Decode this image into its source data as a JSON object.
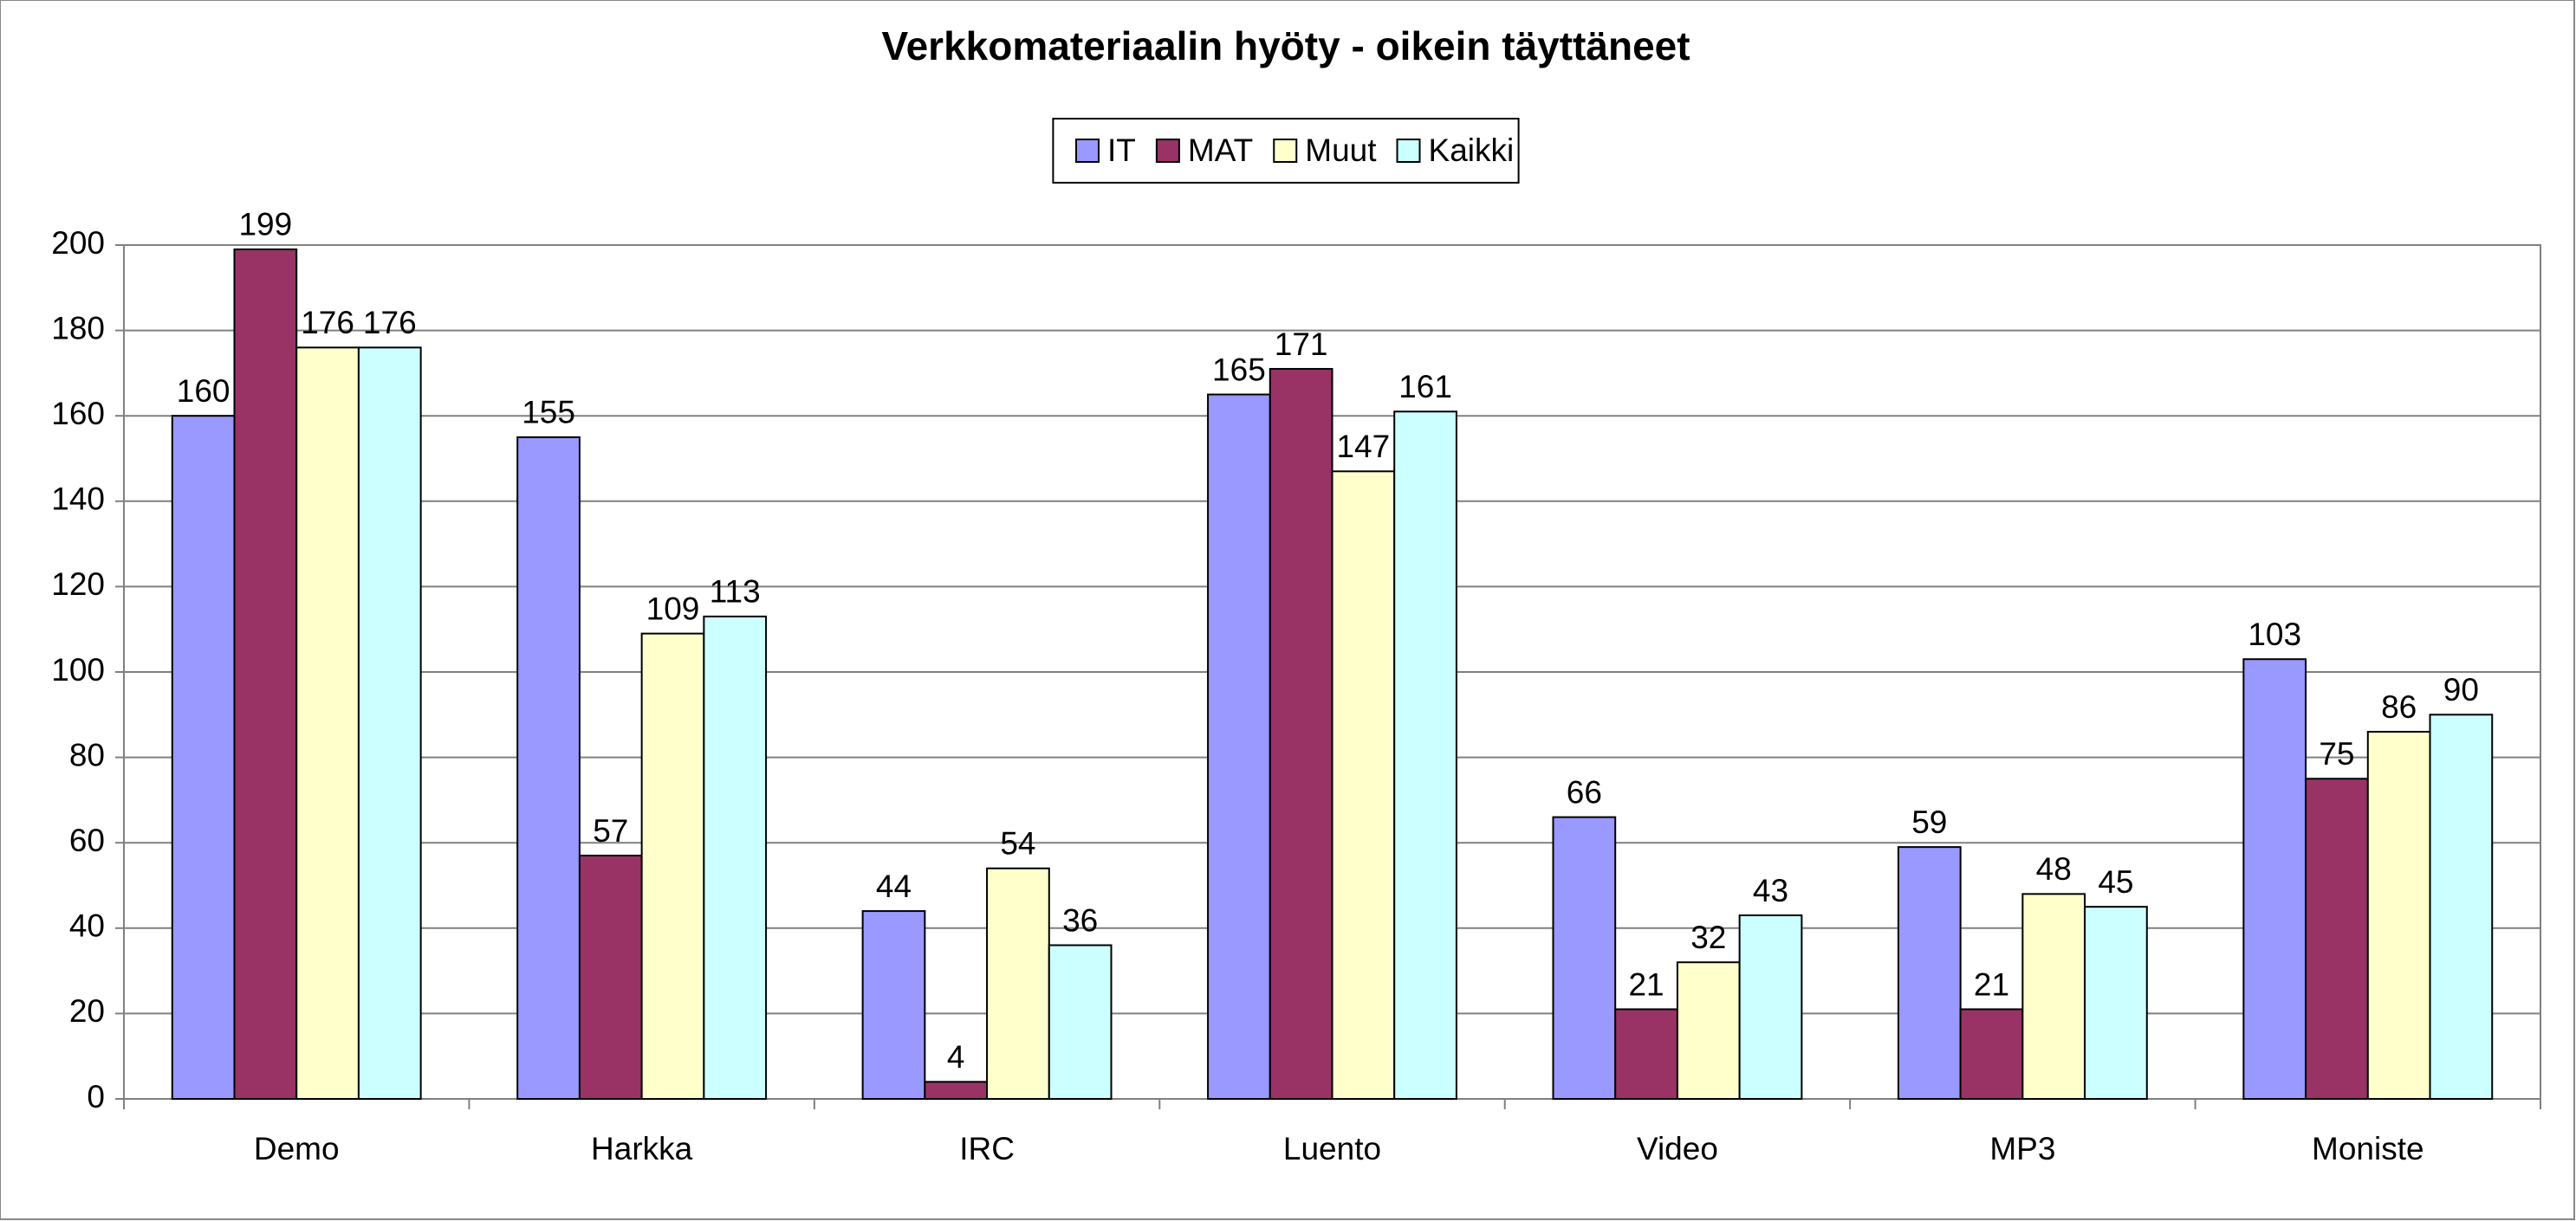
{
  "chart_data": {
    "type": "bar",
    "title": "Verkkomateriaalin hyöty - oikein täyttäneet",
    "categories": [
      "Demo",
      "Harkka",
      "IRC",
      "Luento",
      "Video",
      "MP3",
      "Moniste"
    ],
    "series": [
      {
        "name": "IT",
        "color": "#9999ff",
        "values": [
          160,
          155,
          44,
          165,
          66,
          59,
          103
        ]
      },
      {
        "name": "MAT",
        "color": "#993366",
        "values": [
          199,
          57,
          4,
          171,
          21,
          21,
          75
        ]
      },
      {
        "name": "Muut",
        "color": "#ffffcc",
        "values": [
          176,
          109,
          54,
          147,
          32,
          48,
          86
        ]
      },
      {
        "name": "Kaikki",
        "color": "#ccffff",
        "values": [
          176,
          113,
          36,
          161,
          43,
          45,
          90
        ]
      }
    ],
    "ylim": [
      0,
      200
    ],
    "yticks": [
      0,
      20,
      40,
      60,
      80,
      100,
      120,
      140,
      160,
      180,
      200
    ],
    "grid": true,
    "legend": "top"
  }
}
